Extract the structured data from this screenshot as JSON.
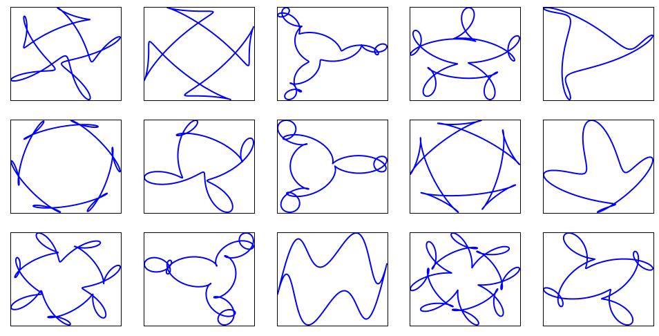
{
  "figure": {
    "rows": 3,
    "cols": 5,
    "line_color": "#0000ff",
    "frame_color": "#000000",
    "background": "#ffffff"
  },
  "chart_data": [
    {
      "type": "line",
      "name": "",
      "curve": {
        "k": [
          1,
          -4,
          7
        ],
        "a": [
          1,
          0.55,
          0.3
        ],
        "p": [
          0,
          0.4,
          1.1
        ]
      },
      "xlim": [
        -1,
        1
      ],
      "ylim": [
        -1,
        1
      ],
      "xticks": [],
      "yticks": [],
      "grid": false,
      "legend": "none"
    },
    {
      "type": "line",
      "name": "",
      "curve": {
        "k": [
          1,
          -3,
          5
        ],
        "a": [
          1,
          0.65,
          0.35
        ],
        "p": [
          0,
          0.7,
          2.0
        ]
      },
      "xlim": [
        -1,
        1
      ],
      "ylim": [
        -1,
        1
      ],
      "xticks": [],
      "yticks": [],
      "grid": false,
      "legend": "none"
    },
    {
      "type": "line",
      "name": "",
      "curve": {
        "k": [
          1,
          -2,
          11
        ],
        "a": [
          1,
          0.6,
          0.15
        ],
        "p": [
          0,
          0.2,
          0.9
        ]
      },
      "xlim": [
        -1,
        1
      ],
      "ylim": [
        -1,
        1
      ],
      "xticks": [],
      "yticks": [],
      "grid": false,
      "legend": "none"
    },
    {
      "type": "line",
      "name": "",
      "curve": {
        "k": [
          1,
          -4,
          9
        ],
        "a": [
          1,
          0.5,
          0.3
        ],
        "p": [
          0,
          1.2,
          0.5
        ]
      },
      "xlim": [
        -1,
        1
      ],
      "ylim": [
        -1,
        1
      ],
      "xticks": [],
      "yticks": [],
      "grid": false,
      "legend": "none"
    },
    {
      "type": "line",
      "name": "",
      "curve": {
        "k": [
          1,
          -2,
          4
        ],
        "a": [
          1,
          0.55,
          0.2
        ],
        "p": [
          0,
          0.3,
          1.7
        ]
      },
      "xlim": [
        -1,
        1
      ],
      "ylim": [
        -1,
        1
      ],
      "xticks": [],
      "yticks": [],
      "grid": false,
      "legend": "none"
    },
    {
      "type": "line",
      "name": "",
      "curve": {
        "k": [
          1,
          -5,
          7
        ],
        "a": [
          1,
          0.3,
          0.25
        ],
        "p": [
          0,
          0.9,
          2.4
        ]
      },
      "xlim": [
        -1,
        1
      ],
      "ylim": [
        -1,
        1
      ],
      "xticks": [],
      "yticks": [],
      "grid": false,
      "legend": "none"
    },
    {
      "type": "line",
      "name": "",
      "curve": {
        "k": [
          1,
          -3,
          6
        ],
        "a": [
          1,
          0.45,
          0.3
        ],
        "p": [
          0,
          1.5,
          0.2
        ]
      },
      "xlim": [
        -1,
        1
      ],
      "ylim": [
        -1,
        1
      ],
      "xticks": [],
      "yticks": [],
      "grid": false,
      "legend": "none"
    },
    {
      "type": "line",
      "name": "",
      "curve": {
        "k": [
          1,
          -2,
          8
        ],
        "a": [
          1,
          0.55,
          0.25
        ],
        "p": [
          0,
          0.1,
          2.8
        ]
      },
      "xlim": [
        -1,
        1
      ],
      "ylim": [
        -1,
        1
      ],
      "xticks": [],
      "yticks": [],
      "grid": false,
      "legend": "none"
    },
    {
      "type": "line",
      "name": "",
      "curve": {
        "k": [
          1,
          -4,
          6
        ],
        "a": [
          1,
          0.5,
          0.35
        ],
        "p": [
          0,
          2.1,
          1.0
        ]
      },
      "xlim": [
        -1,
        1
      ],
      "ylim": [
        -1,
        1
      ],
      "xticks": [],
      "yticks": [],
      "grid": false,
      "legend": "none"
    },
    {
      "type": "line",
      "name": "",
      "curve": {
        "k": [
          1,
          -3,
          4
        ],
        "a": [
          1,
          0.35,
          0.3
        ],
        "p": [
          0,
          0.6,
          1.4
        ]
      },
      "xlim": [
        -1,
        1
      ],
      "ylim": [
        -1,
        1
      ],
      "xticks": [],
      "yticks": [],
      "grid": false,
      "legend": "none"
    },
    {
      "type": "line",
      "name": "",
      "curve": {
        "k": [
          1,
          -6,
          11
        ],
        "a": [
          1,
          0.3,
          0.2
        ],
        "p": [
          0,
          1.0,
          0.3
        ]
      },
      "xlim": [
        -1,
        1
      ],
      "ylim": [
        -1,
        1
      ],
      "xticks": [],
      "yticks": [],
      "grid": false,
      "legend": "none"
    },
    {
      "type": "line",
      "name": "",
      "curve": {
        "k": [
          1,
          -2,
          9
        ],
        "a": [
          1,
          0.55,
          0.25
        ],
        "p": [
          0,
          2.5,
          1.8
        ]
      },
      "xlim": [
        -1,
        1
      ],
      "ylim": [
        -1,
        1
      ],
      "xticks": [],
      "yticks": [],
      "grid": false,
      "legend": "none"
    },
    {
      "type": "line",
      "name": "",
      "curve": {
        "k": [
          1,
          -5,
          5
        ],
        "a": [
          1,
          0.3,
          0.3
        ],
        "p": [
          0,
          0.8,
          2.2
        ]
      },
      "xlim": [
        -1,
        1
      ],
      "ylim": [
        -1,
        1
      ],
      "xticks": [],
      "yticks": [],
      "grid": false,
      "legend": "none"
    },
    {
      "type": "line",
      "name": "",
      "curve": {
        "k": [
          1,
          -7,
          13
        ],
        "a": [
          1,
          0.35,
          0.25
        ],
        "p": [
          0,
          0.4,
          1.2
        ]
      },
      "xlim": [
        -1,
        1
      ],
      "ylim": [
        -1,
        1
      ],
      "xticks": [],
      "yticks": [],
      "grid": false,
      "legend": "none"
    },
    {
      "type": "line",
      "name": "",
      "curve": {
        "k": [
          1,
          -3,
          7
        ],
        "a": [
          1,
          0.5,
          0.3
        ],
        "p": [
          0,
          1.9,
          0.6
        ]
      },
      "xlim": [
        -1,
        1
      ],
      "ylim": [
        -1,
        1
      ],
      "xticks": [],
      "yticks": [],
      "grid": false,
      "legend": "none"
    }
  ]
}
